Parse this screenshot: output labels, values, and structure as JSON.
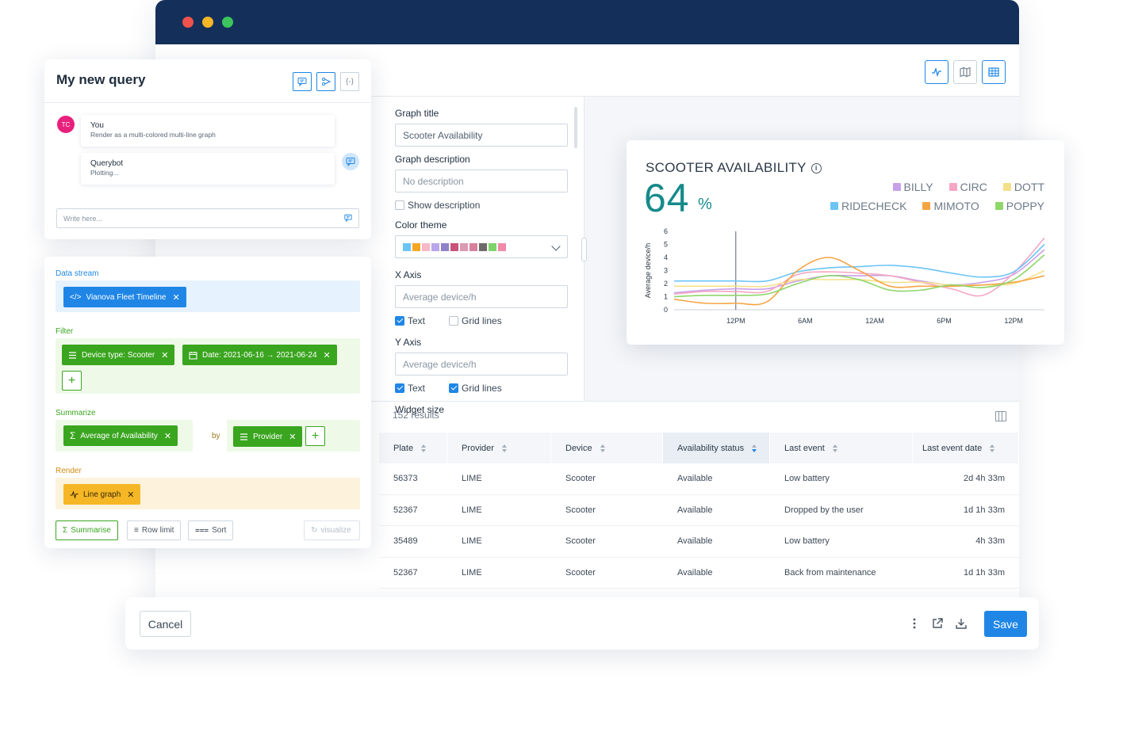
{
  "colors": {
    "titlebar": "#14305a",
    "accent": "#1f86e6",
    "teal": "#168a8a",
    "green_chip": "#3aa51f",
    "yellow_chip": "#f5b726"
  },
  "toolbar": {
    "view_icons": [
      "line-chart-icon",
      "map-icon",
      "table-icon"
    ]
  },
  "config": {
    "graph_title_label": "Graph title",
    "graph_title_value": "Scooter Availability",
    "graph_description_label": "Graph description",
    "graph_description_placeholder": "No description",
    "show_description_label": "Show description",
    "color_theme_label": "Color theme",
    "color_theme_swatches": [
      "#6cc4f5",
      "#f5a623",
      "#f7b7c9",
      "#b9a6e8",
      "#8e82c9",
      "#c9527a",
      "#d99bb0",
      "#d97f9b",
      "#6f6a6a",
      "#7fd36b",
      "#f08aa8"
    ],
    "x_axis_label": "X Axis",
    "x_axis_placeholder": "Average device/h",
    "x_text_label": "Text",
    "x_grid_label": "Grid lines",
    "y_axis_label": "Y Axis",
    "y_axis_placeholder": "Average device/h",
    "y_text_label": "Text",
    "y_grid_label": "Grid lines",
    "widget_size_label": "Widget size"
  },
  "chart_data": {
    "type": "line",
    "title": "SCOOTER AVAILABILITY",
    "kpi_value": "64",
    "kpi_unit": "%",
    "ylabel": "Average device/h",
    "xlabel": "",
    "ylim": [
      0,
      6
    ],
    "yticks": [
      "0",
      "1",
      "2",
      "3",
      "4",
      "5",
      "6"
    ],
    "categories": [
      "12PM",
      "6AM",
      "12AM",
      "6PM",
      "12PM"
    ],
    "grid": false,
    "legend_position": "top-right",
    "x": [
      0,
      0.5,
      1,
      1.5,
      2,
      2.5,
      3,
      3.5,
      4,
      4.5,
      5,
      5.5,
      6
    ],
    "series": [
      {
        "name": "BILLY",
        "color": "#c9a0e8",
        "values": [
          1.3,
          1.5,
          1.6,
          1.6,
          2.2,
          2.6,
          2.6,
          2.6,
          2.2,
          1.9,
          2.1,
          2.7,
          4.6
        ]
      },
      {
        "name": "CIRC",
        "color": "#f4a6c4",
        "values": [
          1.2,
          1.4,
          1.4,
          1.4,
          2.7,
          2.9,
          2.8,
          2.6,
          2.1,
          1.6,
          1.1,
          2.8,
          5.5
        ]
      },
      {
        "name": "DOTT",
        "color": "#f5e08a",
        "values": [
          1.8,
          1.8,
          1.8,
          1.8,
          2.3,
          2.3,
          2.3,
          2.1,
          2.1,
          1.9,
          1.9,
          2.0,
          3.0
        ]
      },
      {
        "name": "RIDECHECK",
        "color": "#6cc4f5",
        "values": [
          2.2,
          2.2,
          2.2,
          2.2,
          2.9,
          3.2,
          3.3,
          3.4,
          3.2,
          2.8,
          2.5,
          2.9,
          5.0
        ]
      },
      {
        "name": "MIMOTO",
        "color": "#f5a443",
        "values": [
          0.8,
          0.5,
          0.5,
          0.6,
          3.0,
          4.0,
          3.0,
          1.8,
          1.8,
          1.8,
          1.9,
          2.1,
          2.6
        ]
      },
      {
        "name": "POPPY",
        "color": "#8fd66b",
        "values": [
          1.0,
          1.1,
          1.1,
          1.2,
          2.0,
          2.6,
          2.3,
          1.5,
          1.5,
          1.9,
          1.7,
          2.3,
          4.2
        ]
      }
    ]
  },
  "results": {
    "count": "152 results",
    "columns": [
      "Plate",
      "Provider",
      "Device",
      "Availability status",
      "Last event",
      "Last event date"
    ],
    "rows": [
      [
        "56373",
        "LIME",
        "Scooter",
        "Available",
        "Low battery",
        "2d 4h 33m"
      ],
      [
        "52367",
        "LIME",
        "Scooter",
        "Available",
        "Dropped by the user",
        "1d 1h 33m"
      ],
      [
        "35489",
        "LIME",
        "Scooter",
        "Available",
        "Low battery",
        "4h 33m"
      ],
      [
        "52367",
        "LIME",
        "Scooter",
        "Available",
        "Back from maintenance",
        "1d 1h 33m"
      ]
    ]
  },
  "query": {
    "title": "My new query",
    "header_icons": [
      "chat-icon",
      "share-icon",
      "code-icon"
    ],
    "user_initials": "TC",
    "user_name": "You",
    "user_message": "Render as a multi-colored multi-line graph",
    "bot_name": "Querybot",
    "bot_message": "Plotting...",
    "input_placeholder": "Write here..."
  },
  "builder": {
    "data_stream_label": "Data stream",
    "data_stream_chip": "Vianova Fleet Timeline",
    "filter_label": "Filter",
    "filter_chips": [
      "Device type: Scooter",
      "Date: 2021-06-16 → 2021-06-24"
    ],
    "summarize_label": "Summarize",
    "summarize_chip": "Average of Availability",
    "by_label": "by",
    "group_chip": "Provider",
    "render_label": "Render",
    "render_chip": "Line graph",
    "btn_summarise": "Summarise",
    "btn_row_limit": "Row limit",
    "btn_sort": "Sort",
    "btn_visualize": "visualize"
  },
  "footer": {
    "cancel": "Cancel",
    "save": "Save"
  }
}
